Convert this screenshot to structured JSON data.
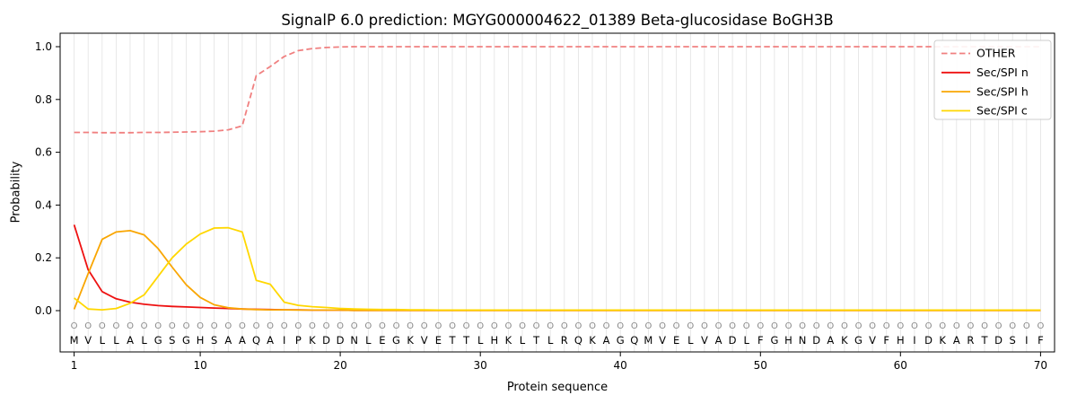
{
  "figure": {
    "background": "#ffffff"
  },
  "chart_data": {
    "type": "line",
    "title": "SignalP 6.0 prediction: MGYG000004622_01389 Beta-glucosidase BoGH3B",
    "xlabel": "Protein sequence",
    "ylabel": "Probability",
    "xlim": [
      0,
      71
    ],
    "ylim": [
      -0.16,
      1.05
    ],
    "xticks": [
      1,
      10,
      20,
      30,
      40,
      50,
      60,
      70
    ],
    "yticks": [
      "0.0",
      "0.2",
      "0.4",
      "0.6",
      "0.8",
      "1.0"
    ],
    "grid": {
      "vertical_line_per_residue": true,
      "color": "#e2e2e2"
    },
    "legend": {
      "position": "upper right",
      "entries": [
        "OTHER",
        "Sec/SPI n",
        "Sec/SPI h",
        "Sec/SPI c"
      ]
    },
    "x_start": 1,
    "sequence": "MVLLALGSGHSAAQAIPKDDNLEGKVETTLHKLTLRQKAGQMVELVADLFGHNDAKGVFHIDKARTDSIF",
    "predicted_labels": "OOOOOOOOOOOOOOOOOOOOOOOOOOOOOOOOOOOOOOOOOOOOOOOOOOOOOOOOOOOOOOOOOOOOOO",
    "series": [
      {
        "name": "OTHER",
        "color": "#f08080",
        "style": "dashed",
        "values": [
          0.675,
          0.675,
          0.674,
          0.674,
          0.674,
          0.675,
          0.675,
          0.676,
          0.677,
          0.678,
          0.68,
          0.685,
          0.7,
          0.89,
          0.925,
          0.963,
          0.985,
          0.993,
          0.997,
          0.999,
          1.0
        ]
      },
      {
        "name": "Sec/SPI n",
        "color": "#ee1111",
        "style": "solid",
        "values": [
          0.325,
          0.155,
          0.072,
          0.045,
          0.032,
          0.024,
          0.019,
          0.016,
          0.014,
          0.012,
          0.01,
          0.008,
          0.006,
          0.005,
          0.004,
          0.003,
          0.003,
          0.002,
          0.002,
          0.002,
          0.001
        ]
      },
      {
        "name": "Sec/SPI h",
        "color": "#f9a602",
        "style": "solid",
        "values": [
          0.005,
          0.14,
          0.27,
          0.298,
          0.303,
          0.287,
          0.235,
          0.165,
          0.098,
          0.05,
          0.022,
          0.011,
          0.006,
          0.004,
          0.003,
          0.003,
          0.002,
          0.002,
          0.002,
          0.002,
          0.001
        ]
      },
      {
        "name": "Sec/SPI c",
        "color": "#ffd700",
        "style": "solid",
        "values": [
          0.048,
          0.006,
          0.003,
          0.008,
          0.028,
          0.06,
          0.13,
          0.2,
          0.252,
          0.29,
          0.313,
          0.314,
          0.298,
          0.115,
          0.1,
          0.032,
          0.02,
          0.015,
          0.012,
          0.008,
          0.006,
          0.005,
          0.004,
          0.004,
          0.003,
          0.003,
          0.002
        ]
      }
    ]
  }
}
